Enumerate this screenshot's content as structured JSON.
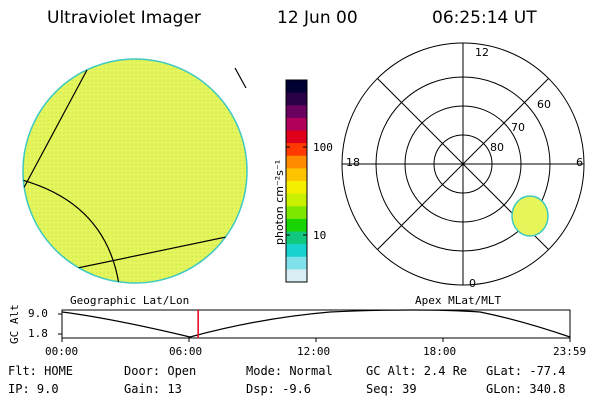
{
  "header": {
    "title": "Ultraviolet Imager",
    "date": "12 Jun 00",
    "time": "06:25:14 UT"
  },
  "colorbar": {
    "unit_label": "photon cm⁻²s⁻¹",
    "ticks": [
      "100",
      "10"
    ],
    "colors": [
      "#000033",
      "#2a0044",
      "#6a0060",
      "#b0005a",
      "#e0001c",
      "#ff3a00",
      "#ff8c00",
      "#ffc400",
      "#f4f000",
      "#c8f000",
      "#7ee800",
      "#1ad400",
      "#12c87e",
      "#18d2d0",
      "#7fe2ea",
      "#d8eef4"
    ]
  },
  "left_panel": {
    "label": "Geographic Lat/Lon",
    "fill_color": "#e6f55a"
  },
  "right_panel": {
    "label": "Apex MLat/MLT",
    "hour_labels": [
      "12",
      "18",
      "6",
      "0"
    ],
    "lat_labels": [
      "60",
      "70",
      "80"
    ]
  },
  "timeline": {
    "y_axis_label": "GC Alt",
    "y_ticks": [
      "9.0",
      "1.8"
    ],
    "x_ticks": [
      "00:00",
      "06:00",
      "12:00",
      "18:00",
      "23:59"
    ],
    "current_time_fraction": 0.268
  },
  "info": {
    "filter": "Flt: HOME",
    "ip": "IP:  9.0",
    "door": "Door: Open",
    "gain": "Gain: 13",
    "mode": "Mode: Normal",
    "dsp": "Dsp:   -9.6",
    "gc_alt": "GC Alt: 2.4 Re",
    "seq": "Seq: 39",
    "glat": "GLat: -77.4",
    "glon": "GLon: 340.8"
  }
}
